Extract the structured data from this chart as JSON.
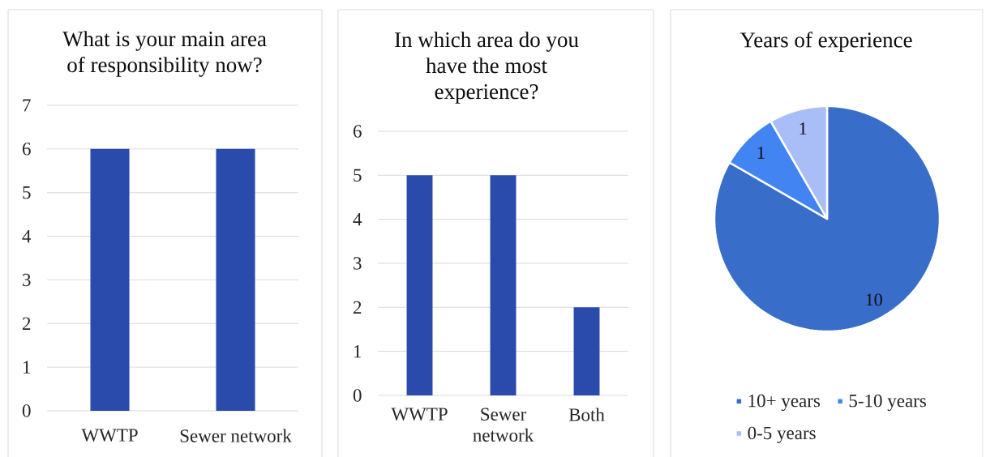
{
  "chart_data": [
    {
      "type": "bar",
      "title": "What is your main area of responsibility now?",
      "categories": [
        "WWTP",
        "Sewer network"
      ],
      "values": [
        6,
        6
      ],
      "color": "#2b4bac",
      "ylim": [
        0,
        7
      ],
      "yticks": [
        0,
        1,
        2,
        3,
        4,
        5,
        6,
        7
      ],
      "grid": "y"
    },
    {
      "type": "bar",
      "title": "In which area do you have the most experience?",
      "categories": [
        "WWTP",
        "Sewer network",
        "Both"
      ],
      "values": [
        5,
        5,
        2
      ],
      "color": "#2b4bac",
      "ylim": [
        0,
        6
      ],
      "yticks": [
        0,
        1,
        2,
        3,
        4,
        5,
        6
      ],
      "grid": "y"
    },
    {
      "type": "pie",
      "title": "Years of experience",
      "categories": [
        "10+ years",
        "5-10 years",
        "0-5 years"
      ],
      "values": [
        10,
        1,
        1
      ],
      "colors": [
        "#386ec9",
        "#4285f2",
        "#a9bdf6"
      ],
      "data_labels": true,
      "legend": "bottom"
    }
  ]
}
